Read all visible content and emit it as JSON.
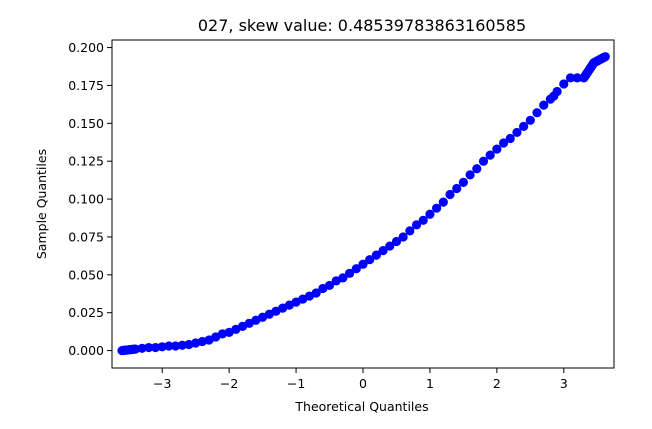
{
  "chart_data": {
    "type": "scatter",
    "title": "027, skew value: 0.48539783863160585",
    "xlabel": "Theoretical Quantiles",
    "ylabel": "Sample Quantiles",
    "xlim": [
      -3.75,
      3.75
    ],
    "ylim": [
      -0.0115,
      0.205
    ],
    "x_ticks": [
      -3,
      -2,
      -1,
      0,
      1,
      2,
      3
    ],
    "x_tick_labels": [
      "−3",
      "−2",
      "−1",
      "0",
      "1",
      "2",
      "3"
    ],
    "y_ticks": [
      0.0,
      0.025,
      0.05,
      0.075,
      0.1,
      0.125,
      0.15,
      0.175,
      0.2
    ],
    "y_tick_labels": [
      "0.000",
      "0.025",
      "0.050",
      "0.075",
      "0.100",
      "0.125",
      "0.150",
      "0.175",
      "0.200"
    ],
    "grid": false,
    "marker_color": "#0000ff",
    "series": [
      {
        "x": [
          -3.6,
          -3.4,
          -3.3,
          -3.2,
          -3.1,
          -3.0,
          -2.9,
          -2.8,
          -2.7,
          -2.6,
          -2.5,
          -2.4,
          -2.3,
          -2.2,
          -2.1,
          -2.0,
          -1.9,
          -1.8,
          -1.7,
          -1.6,
          -1.5,
          -1.4,
          -1.3,
          -1.2,
          -1.1,
          -1.0,
          -0.9,
          -0.8,
          -0.7,
          -0.6,
          -0.5,
          -0.4,
          -0.3,
          -0.2,
          -0.1,
          0.0,
          0.1,
          0.2,
          0.3,
          0.4,
          0.5,
          0.6,
          0.7,
          0.8,
          0.9,
          1.0,
          1.1,
          1.2,
          1.3,
          1.4,
          1.5,
          1.6,
          1.7,
          1.8,
          1.9,
          2.0,
          2.1,
          2.2,
          2.3,
          2.4,
          2.5,
          2.6,
          2.7,
          2.8,
          2.85,
          2.9,
          3.0,
          3.1,
          3.2,
          3.3,
          3.45,
          3.62
        ],
        "y": [
          0.0,
          0.001,
          0.0015,
          0.002,
          0.002,
          0.0025,
          0.003,
          0.003,
          0.0035,
          0.004,
          0.005,
          0.006,
          0.007,
          0.009,
          0.011,
          0.012,
          0.014,
          0.016,
          0.018,
          0.02,
          0.022,
          0.024,
          0.026,
          0.028,
          0.03,
          0.032,
          0.034,
          0.036,
          0.038,
          0.041,
          0.043,
          0.046,
          0.048,
          0.051,
          0.054,
          0.057,
          0.06,
          0.063,
          0.066,
          0.069,
          0.072,
          0.075,
          0.079,
          0.083,
          0.086,
          0.09,
          0.094,
          0.098,
          0.103,
          0.107,
          0.111,
          0.116,
          0.12,
          0.125,
          0.129,
          0.133,
          0.137,
          0.14,
          0.144,
          0.148,
          0.152,
          0.157,
          0.162,
          0.166,
          0.168,
          0.171,
          0.176,
          0.18,
          0.18,
          0.18,
          0.19,
          0.194
        ]
      }
    ]
  }
}
